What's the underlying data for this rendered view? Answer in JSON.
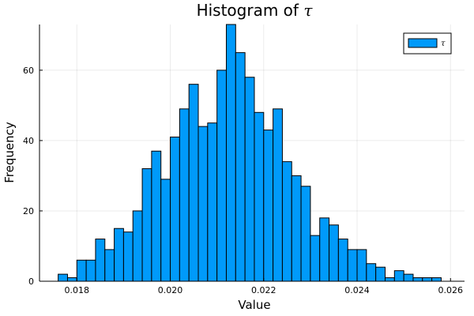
{
  "chart_data": {
    "type": "bar",
    "title_prefix": "Histogram of ",
    "title_symbol": "τ",
    "xlabel": "Value",
    "ylabel": "Frequency",
    "xlim": [
      0.0172,
      0.0263
    ],
    "ylim": [
      0,
      73
    ],
    "bin_start": 0.0176,
    "bin_width": 0.0002,
    "values": [
      2,
      1,
      6,
      6,
      12,
      9,
      15,
      14,
      20,
      32,
      37,
      29,
      41,
      49,
      56,
      44,
      45,
      60,
      73,
      65,
      58,
      48,
      43,
      49,
      34,
      30,
      27,
      13,
      18,
      16,
      12,
      9,
      9,
      5,
      4,
      1,
      3,
      2,
      1,
      1,
      1
    ],
    "x_ticks": [
      0.018,
      0.02,
      0.022,
      0.024,
      0.026
    ],
    "x_tick_labels": [
      "0.018",
      "0.020",
      "0.022",
      "0.024",
      "0.026"
    ],
    "y_ticks": [
      0,
      20,
      40,
      60
    ],
    "y_tick_labels": [
      "0",
      "20",
      "40",
      "60"
    ],
    "grid": true,
    "legend": {
      "position": "top-right",
      "entries": [
        {
          "name": "τ",
          "color": "#009AFA"
        }
      ]
    },
    "bar_color": "#009AFA"
  }
}
